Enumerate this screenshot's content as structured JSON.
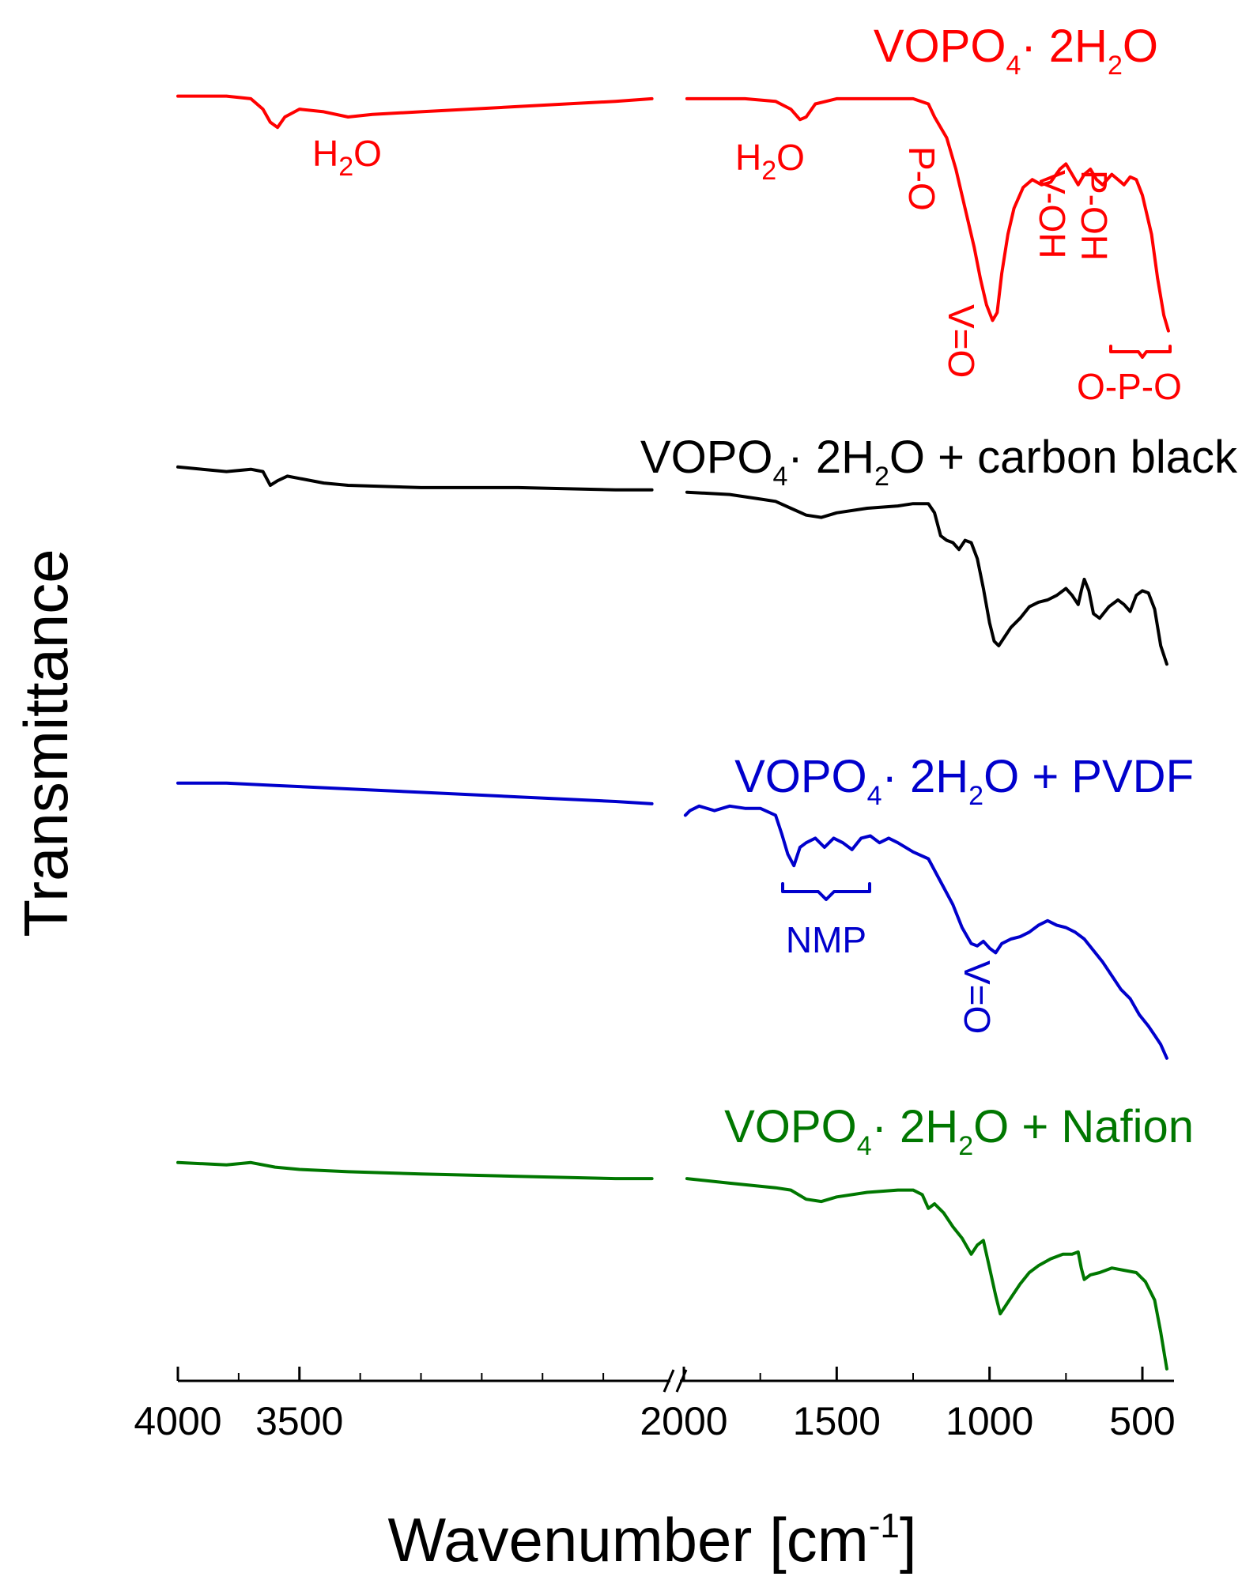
{
  "chart_data": {
    "type": "line",
    "title": "",
    "xlabel": "Wavenumber [cm",
    "xlabel_sup": "-1",
    "xlabel_close": "]",
    "ylabel": "Transmittance",
    "x_break": [
      2000,
      2000
    ],
    "x_left_range": [
      4000,
      2000
    ],
    "x_right_range": [
      2000,
      400
    ],
    "x_ticks": [
      4000,
      3500,
      2000,
      1500,
      1000,
      500
    ],
    "x_tick_labels": [
      "4000",
      "3500",
      "2000",
      "1500",
      "1000",
      "500"
    ],
    "y_axis_visible": false,
    "grid": false,
    "colors": {
      "red": "#ff0000",
      "black": "#000000",
      "blue": "#0000cc",
      "green": "#007700"
    },
    "series": [
      {
        "name": "VOPO4·2H2O",
        "label_parts": [
          "VOPO",
          "4",
          "· 2H",
          "2",
          "O"
        ],
        "color": "#ff0000",
        "offset": 3,
        "points": [
          [
            4000,
            0.98
          ],
          [
            3800,
            0.98
          ],
          [
            3700,
            0.97
          ],
          [
            3650,
            0.93
          ],
          [
            3620,
            0.88
          ],
          [
            3590,
            0.86
          ],
          [
            3560,
            0.9
          ],
          [
            3500,
            0.93
          ],
          [
            3400,
            0.92
          ],
          [
            3300,
            0.9
          ],
          [
            3200,
            0.91
          ],
          [
            3000,
            0.92
          ],
          [
            2600,
            0.94
          ],
          [
            2200,
            0.96
          ],
          [
            2050,
            0.97
          ],
          [
            1990,
            0.97
          ],
          [
            1800,
            0.97
          ],
          [
            1700,
            0.96
          ],
          [
            1650,
            0.93
          ],
          [
            1620,
            0.89
          ],
          [
            1600,
            0.9
          ],
          [
            1570,
            0.95
          ],
          [
            1500,
            0.97
          ],
          [
            1400,
            0.97
          ],
          [
            1250,
            0.97
          ],
          [
            1200,
            0.95
          ],
          [
            1180,
            0.9
          ],
          [
            1160,
            0.86
          ],
          [
            1140,
            0.82
          ],
          [
            1110,
            0.7
          ],
          [
            1080,
            0.55
          ],
          [
            1050,
            0.4
          ],
          [
            1030,
            0.28
          ],
          [
            1010,
            0.18
          ],
          [
            990,
            0.12
          ],
          [
            975,
            0.15
          ],
          [
            960,
            0.3
          ],
          [
            940,
            0.45
          ],
          [
            920,
            0.55
          ],
          [
            890,
            0.63
          ],
          [
            860,
            0.66
          ],
          [
            830,
            0.64
          ],
          [
            800,
            0.65
          ],
          [
            770,
            0.7
          ],
          [
            750,
            0.72
          ],
          [
            730,
            0.68
          ],
          [
            710,
            0.64
          ],
          [
            690,
            0.68
          ],
          [
            670,
            0.7
          ],
          [
            650,
            0.66
          ],
          [
            630,
            0.64
          ],
          [
            600,
            0.68
          ],
          [
            580,
            0.66
          ],
          [
            560,
            0.64
          ],
          [
            540,
            0.67
          ],
          [
            520,
            0.66
          ],
          [
            500,
            0.6
          ],
          [
            470,
            0.45
          ],
          [
            450,
            0.28
          ],
          [
            430,
            0.14
          ],
          [
            415,
            0.08
          ]
        ],
        "annotations": [
          {
            "text": "H",
            "sub": "2",
            "after": "O",
            "wn": 3620
          },
          {
            "text": "H",
            "sub": "2",
            "after": "O",
            "wn": 1620
          },
          {
            "text": "P-O",
            "rotated": true,
            "wn": 1175
          },
          {
            "text": "V=O",
            "rotated": true,
            "wn": 990
          },
          {
            "text": "V-OH",
            "rotated": true,
            "wn": 780
          },
          {
            "text": "P-OH",
            "rotated": true,
            "wn": 690
          },
          {
            "text": "O-P-O",
            "wn": 500
          }
        ]
      },
      {
        "name": "VOPO4·2H2O + carbon black",
        "label_parts": [
          "VOPO",
          "4",
          "· 2H",
          "2",
          "O + carbon black"
        ],
        "color": "#000000",
        "offset": 2,
        "points": [
          [
            4000,
            0.98
          ],
          [
            3900,
            0.97
          ],
          [
            3800,
            0.96
          ],
          [
            3700,
            0.97
          ],
          [
            3650,
            0.96
          ],
          [
            3620,
            0.9
          ],
          [
            3590,
            0.92
          ],
          [
            3550,
            0.94
          ],
          [
            3500,
            0.93
          ],
          [
            3400,
            0.91
          ],
          [
            3300,
            0.9
          ],
          [
            3000,
            0.89
          ],
          [
            2600,
            0.89
          ],
          [
            2200,
            0.88
          ],
          [
            2050,
            0.88
          ],
          [
            1990,
            0.87
          ],
          [
            1850,
            0.86
          ],
          [
            1750,
            0.84
          ],
          [
            1700,
            0.83
          ],
          [
            1650,
            0.8
          ],
          [
            1600,
            0.77
          ],
          [
            1550,
            0.76
          ],
          [
            1500,
            0.78
          ],
          [
            1400,
            0.8
          ],
          [
            1300,
            0.81
          ],
          [
            1250,
            0.82
          ],
          [
            1200,
            0.82
          ],
          [
            1180,
            0.78
          ],
          [
            1160,
            0.68
          ],
          [
            1140,
            0.66
          ],
          [
            1120,
            0.65
          ],
          [
            1100,
            0.62
          ],
          [
            1080,
            0.66
          ],
          [
            1060,
            0.65
          ],
          [
            1040,
            0.58
          ],
          [
            1020,
            0.45
          ],
          [
            1000,
            0.3
          ],
          [
            985,
            0.22
          ],
          [
            970,
            0.2
          ],
          [
            950,
            0.24
          ],
          [
            930,
            0.28
          ],
          [
            900,
            0.32
          ],
          [
            870,
            0.37
          ],
          [
            840,
            0.39
          ],
          [
            810,
            0.4
          ],
          [
            780,
            0.42
          ],
          [
            750,
            0.45
          ],
          [
            730,
            0.42
          ],
          [
            710,
            0.38
          ],
          [
            700,
            0.44
          ],
          [
            690,
            0.49
          ],
          [
            675,
            0.44
          ],
          [
            660,
            0.34
          ],
          [
            640,
            0.32
          ],
          [
            610,
            0.37
          ],
          [
            580,
            0.4
          ],
          [
            560,
            0.38
          ],
          [
            540,
            0.35
          ],
          [
            520,
            0.42
          ],
          [
            500,
            0.44
          ],
          [
            480,
            0.43
          ],
          [
            460,
            0.36
          ],
          [
            440,
            0.2
          ],
          [
            420,
            0.12
          ]
        ]
      },
      {
        "name": "VOPO4·2H2O + PVDF",
        "label_parts": [
          "VOPO",
          "4",
          "· 2H",
          "2",
          "O + PVDF"
        ],
        "color": "#0000cc",
        "offset": 1,
        "points": [
          [
            4000,
            0.98
          ],
          [
            3800,
            0.98
          ],
          [
            3600,
            0.97
          ],
          [
            3400,
            0.96
          ],
          [
            3200,
            0.95
          ],
          [
            3000,
            0.94
          ],
          [
            2600,
            0.92
          ],
          [
            2200,
            0.9
          ],
          [
            2050,
            0.89
          ],
          [
            1995,
            0.84
          ],
          [
            1980,
            0.86
          ],
          [
            1950,
            0.88
          ],
          [
            1900,
            0.86
          ],
          [
            1850,
            0.88
          ],
          [
            1800,
            0.87
          ],
          [
            1750,
            0.87
          ],
          [
            1700,
            0.84
          ],
          [
            1680,
            0.76
          ],
          [
            1660,
            0.67
          ],
          [
            1640,
            0.62
          ],
          [
            1620,
            0.7
          ],
          [
            1600,
            0.72
          ],
          [
            1570,
            0.74
          ],
          [
            1540,
            0.7
          ],
          [
            1510,
            0.74
          ],
          [
            1480,
            0.72
          ],
          [
            1450,
            0.69
          ],
          [
            1420,
            0.74
          ],
          [
            1390,
            0.75
          ],
          [
            1360,
            0.72
          ],
          [
            1330,
            0.74
          ],
          [
            1300,
            0.72
          ],
          [
            1250,
            0.68
          ],
          [
            1200,
            0.65
          ],
          [
            1160,
            0.55
          ],
          [
            1120,
            0.45
          ],
          [
            1090,
            0.35
          ],
          [
            1060,
            0.28
          ],
          [
            1040,
            0.27
          ],
          [
            1020,
            0.29
          ],
          [
            1000,
            0.26
          ],
          [
            980,
            0.24
          ],
          [
            960,
            0.28
          ],
          [
            930,
            0.3
          ],
          [
            900,
            0.31
          ],
          [
            870,
            0.33
          ],
          [
            840,
            0.36
          ],
          [
            810,
            0.38
          ],
          [
            780,
            0.36
          ],
          [
            750,
            0.35
          ],
          [
            720,
            0.33
          ],
          [
            690,
            0.3
          ],
          [
            660,
            0.25
          ],
          [
            630,
            0.2
          ],
          [
            600,
            0.14
          ],
          [
            570,
            0.08
          ],
          [
            540,
            0.04
          ],
          [
            510,
            -0.03
          ],
          [
            480,
            -0.08
          ],
          [
            460,
            -0.12
          ],
          [
            440,
            -0.16
          ],
          [
            420,
            -0.22
          ]
        ],
        "annotations": [
          {
            "text": "NMP",
            "wn": 1540
          },
          {
            "text": "V=O",
            "rotated": true,
            "wn": 1000
          }
        ]
      },
      {
        "name": "VOPO4·2H2O + Nafion",
        "label_parts": [
          "VOPO",
          "4",
          "· 2H",
          "2",
          "O + Nafion"
        ],
        "color": "#007700",
        "offset": 0,
        "points": [
          [
            4000,
            0.98
          ],
          [
            3800,
            0.97
          ],
          [
            3700,
            0.98
          ],
          [
            3600,
            0.96
          ],
          [
            3500,
            0.95
          ],
          [
            3300,
            0.94
          ],
          [
            3000,
            0.93
          ],
          [
            2600,
            0.92
          ],
          [
            2200,
            0.91
          ],
          [
            2050,
            0.91
          ],
          [
            1990,
            0.91
          ],
          [
            1850,
            0.89
          ],
          [
            1700,
            0.87
          ],
          [
            1650,
            0.86
          ],
          [
            1600,
            0.82
          ],
          [
            1550,
            0.81
          ],
          [
            1500,
            0.83
          ],
          [
            1400,
            0.85
          ],
          [
            1300,
            0.86
          ],
          [
            1250,
            0.86
          ],
          [
            1220,
            0.84
          ],
          [
            1200,
            0.78
          ],
          [
            1180,
            0.8
          ],
          [
            1150,
            0.76
          ],
          [
            1120,
            0.7
          ],
          [
            1090,
            0.65
          ],
          [
            1060,
            0.58
          ],
          [
            1040,
            0.62
          ],
          [
            1020,
            0.64
          ],
          [
            1000,
            0.52
          ],
          [
            980,
            0.4
          ],
          [
            965,
            0.32
          ],
          [
            950,
            0.35
          ],
          [
            930,
            0.39
          ],
          [
            900,
            0.45
          ],
          [
            870,
            0.5
          ],
          [
            840,
            0.53
          ],
          [
            800,
            0.56
          ],
          [
            760,
            0.58
          ],
          [
            730,
            0.58
          ],
          [
            710,
            0.59
          ],
          [
            700,
            0.52
          ],
          [
            690,
            0.47
          ],
          [
            670,
            0.49
          ],
          [
            640,
            0.5
          ],
          [
            600,
            0.52
          ],
          [
            560,
            0.51
          ],
          [
            520,
            0.5
          ],
          [
            490,
            0.46
          ],
          [
            460,
            0.38
          ],
          [
            440,
            0.24
          ],
          [
            420,
            0.08
          ]
        ]
      }
    ]
  }
}
